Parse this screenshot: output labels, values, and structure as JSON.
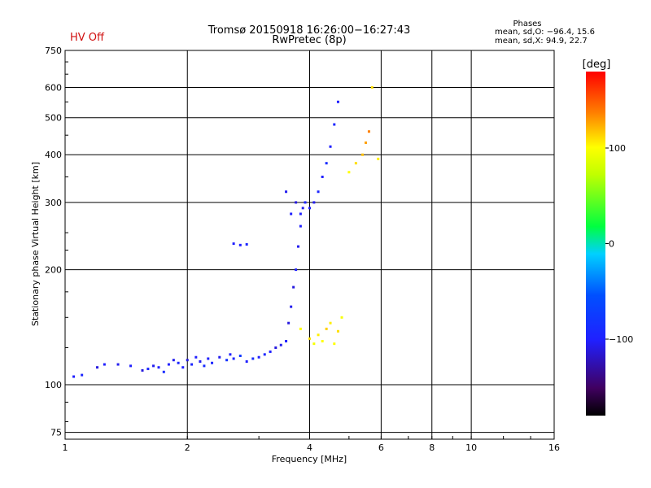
{
  "status": {
    "hv_label": "HV Off",
    "hv_color": "#d01010"
  },
  "header": {
    "title_line1": "Tromsø 20150918 16:26:00−16:27:43",
    "title_line2": "RwPretec (8p)"
  },
  "phase_info": {
    "title": "Phases",
    "line_o": "mean, sd,O: −96.4, 15.6",
    "line_x": "mean, sd,X:  94.9, 22.7"
  },
  "chart_data": {
    "type": "scatter",
    "xlabel": "Frequency [MHz]",
    "ylabel": "Stationary phase Virtual Height [km]",
    "x_scale": "log",
    "y_scale": "log",
    "xlim": [
      1,
      16
    ],
    "ylim": [
      72,
      750
    ],
    "x_ticks": [
      1,
      2,
      4,
      6,
      8,
      10,
      16
    ],
    "x_tick_labels": [
      "1",
      "2",
      "4",
      "6",
      "8",
      "10",
      "16"
    ],
    "y_ticks": [
      75,
      100,
      200,
      300,
      400,
      500,
      600,
      750
    ],
    "y_tick_labels": [
      "75",
      "100",
      "200",
      "300",
      "400",
      "500",
      "600",
      "750"
    ],
    "grid": true,
    "colorbar": {
      "label": "[deg]",
      "range": [
        -180,
        180
      ],
      "ticks": [
        100,
        0,
        -100
      ],
      "tick_labels": [
        "100",
        "0",
        "−100"
      ]
    },
    "series": [
      {
        "description_hidden": "",
        "points": [
          [
            1.05,
            105,
            -100
          ],
          [
            1.1,
            106,
            -95
          ],
          [
            1.2,
            111,
            -110
          ],
          [
            1.25,
            113,
            -100
          ],
          [
            1.35,
            113,
            -105
          ],
          [
            1.45,
            112,
            -100
          ],
          [
            1.55,
            109,
            -110
          ],
          [
            1.6,
            110,
            -95
          ],
          [
            1.65,
            112,
            -105
          ],
          [
            1.7,
            111,
            -100
          ],
          [
            1.75,
            108,
            -90
          ],
          [
            1.8,
            113,
            -100
          ],
          [
            1.85,
            116,
            -105
          ],
          [
            1.9,
            114,
            -95
          ],
          [
            1.95,
            111,
            -100
          ],
          [
            2.0,
            116,
            -110
          ],
          [
            2.05,
            113,
            -95
          ],
          [
            2.1,
            118,
            -100
          ],
          [
            2.15,
            115,
            -105
          ],
          [
            2.2,
            112,
            -90
          ],
          [
            2.25,
            117,
            -100
          ],
          [
            2.3,
            114,
            -95
          ],
          [
            2.4,
            118,
            -105
          ],
          [
            2.5,
            116,
            -85
          ],
          [
            2.55,
            120,
            -100
          ],
          [
            2.6,
            117,
            -95
          ],
          [
            2.7,
            119,
            -80
          ],
          [
            2.8,
            115,
            -100
          ],
          [
            2.9,
            117,
            -90
          ],
          [
            3.0,
            118,
            -100
          ],
          [
            3.1,
            120,
            -95
          ],
          [
            3.2,
            122,
            -100
          ],
          [
            3.3,
            125,
            -110
          ],
          [
            3.4,
            127,
            -105
          ],
          [
            3.5,
            130,
            -100
          ],
          [
            3.55,
            145,
            -110
          ],
          [
            3.6,
            160,
            -105
          ],
          [
            3.65,
            180,
            -110
          ],
          [
            3.7,
            200,
            -100
          ],
          [
            3.75,
            230,
            -105
          ],
          [
            3.8,
            260,
            -100
          ],
          [
            3.85,
            290,
            -105
          ],
          [
            3.9,
            300,
            -95
          ],
          [
            4.0,
            290,
            -100
          ],
          [
            4.1,
            300,
            -105
          ],
          [
            4.2,
            320,
            -95
          ],
          [
            4.3,
            350,
            -100
          ],
          [
            4.4,
            380,
            -90
          ],
          [
            4.5,
            420,
            -100
          ],
          [
            4.6,
            480,
            -95
          ],
          [
            4.7,
            550,
            -100
          ],
          [
            2.6,
            234,
            -100
          ],
          [
            2.7,
            232,
            -100
          ],
          [
            2.8,
            233,
            -95
          ],
          [
            3.5,
            320,
            -105
          ],
          [
            3.6,
            280,
            -100
          ],
          [
            3.7,
            300,
            -110
          ],
          [
            3.8,
            280,
            -100
          ]
        ]
      },
      {
        "points": [
          [
            3.8,
            140,
            100
          ],
          [
            4.0,
            132,
            110
          ],
          [
            4.1,
            128,
            95
          ],
          [
            4.2,
            135,
            105
          ],
          [
            4.3,
            130,
            100
          ],
          [
            4.4,
            140,
            115
          ],
          [
            4.5,
            145,
            105
          ],
          [
            4.6,
            128,
            100
          ],
          [
            4.7,
            138,
            110
          ],
          [
            4.8,
            150,
            95
          ],
          [
            5.0,
            360,
            100
          ],
          [
            5.2,
            380,
            110
          ],
          [
            5.4,
            400,
            120
          ],
          [
            5.5,
            430,
            130
          ],
          [
            5.6,
            460,
            140
          ],
          [
            5.7,
            600,
            110
          ],
          [
            5.9,
            390,
            105
          ]
        ]
      }
    ]
  }
}
